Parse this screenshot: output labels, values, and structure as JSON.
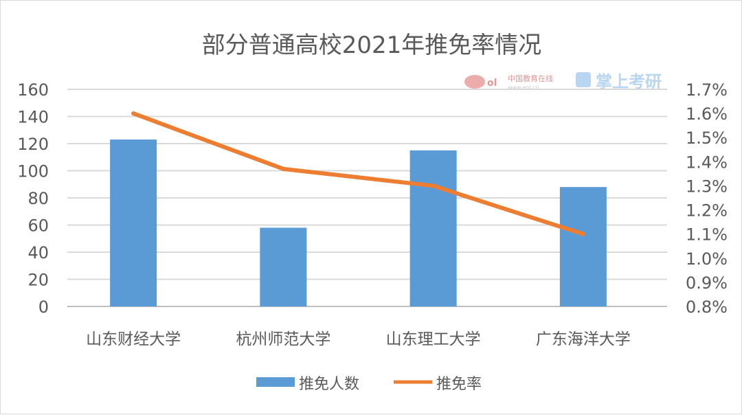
{
  "chart_data": {
    "type": "bar+line",
    "title": "部分普通高校2021年推免率情况",
    "categories": [
      "山东财经大学",
      "杭州师范大学",
      "山东理工大学",
      "广东海洋大学"
    ],
    "series": [
      {
        "name": "推免人数",
        "type": "bar",
        "axis": "left",
        "values": [
          123,
          58,
          115,
          88
        ],
        "color": "#5b9bd5"
      },
      {
        "name": "推免率",
        "type": "line",
        "axis": "right",
        "values": [
          1.6,
          1.37,
          1.3,
          1.1
        ],
        "unit": "%",
        "color": "#ed7d31"
      }
    ],
    "y_left": {
      "range": [
        0,
        160
      ],
      "ticks": [
        "0",
        "20",
        "40",
        "60",
        "80",
        "100",
        "120",
        "140",
        "160"
      ]
    },
    "y_right": {
      "range": [
        0.8,
        1.7
      ],
      "ticks": [
        "0.8%",
        "0.9%",
        "1.0%",
        "1.1%",
        "1.2%",
        "1.3%",
        "1.4%",
        "1.5%",
        "1.6%",
        "1.7%"
      ]
    },
    "grid": true,
    "legend": "bottom"
  },
  "watermark": {
    "text": "中国教育在线 www.eol.cn 掌上考研"
  }
}
